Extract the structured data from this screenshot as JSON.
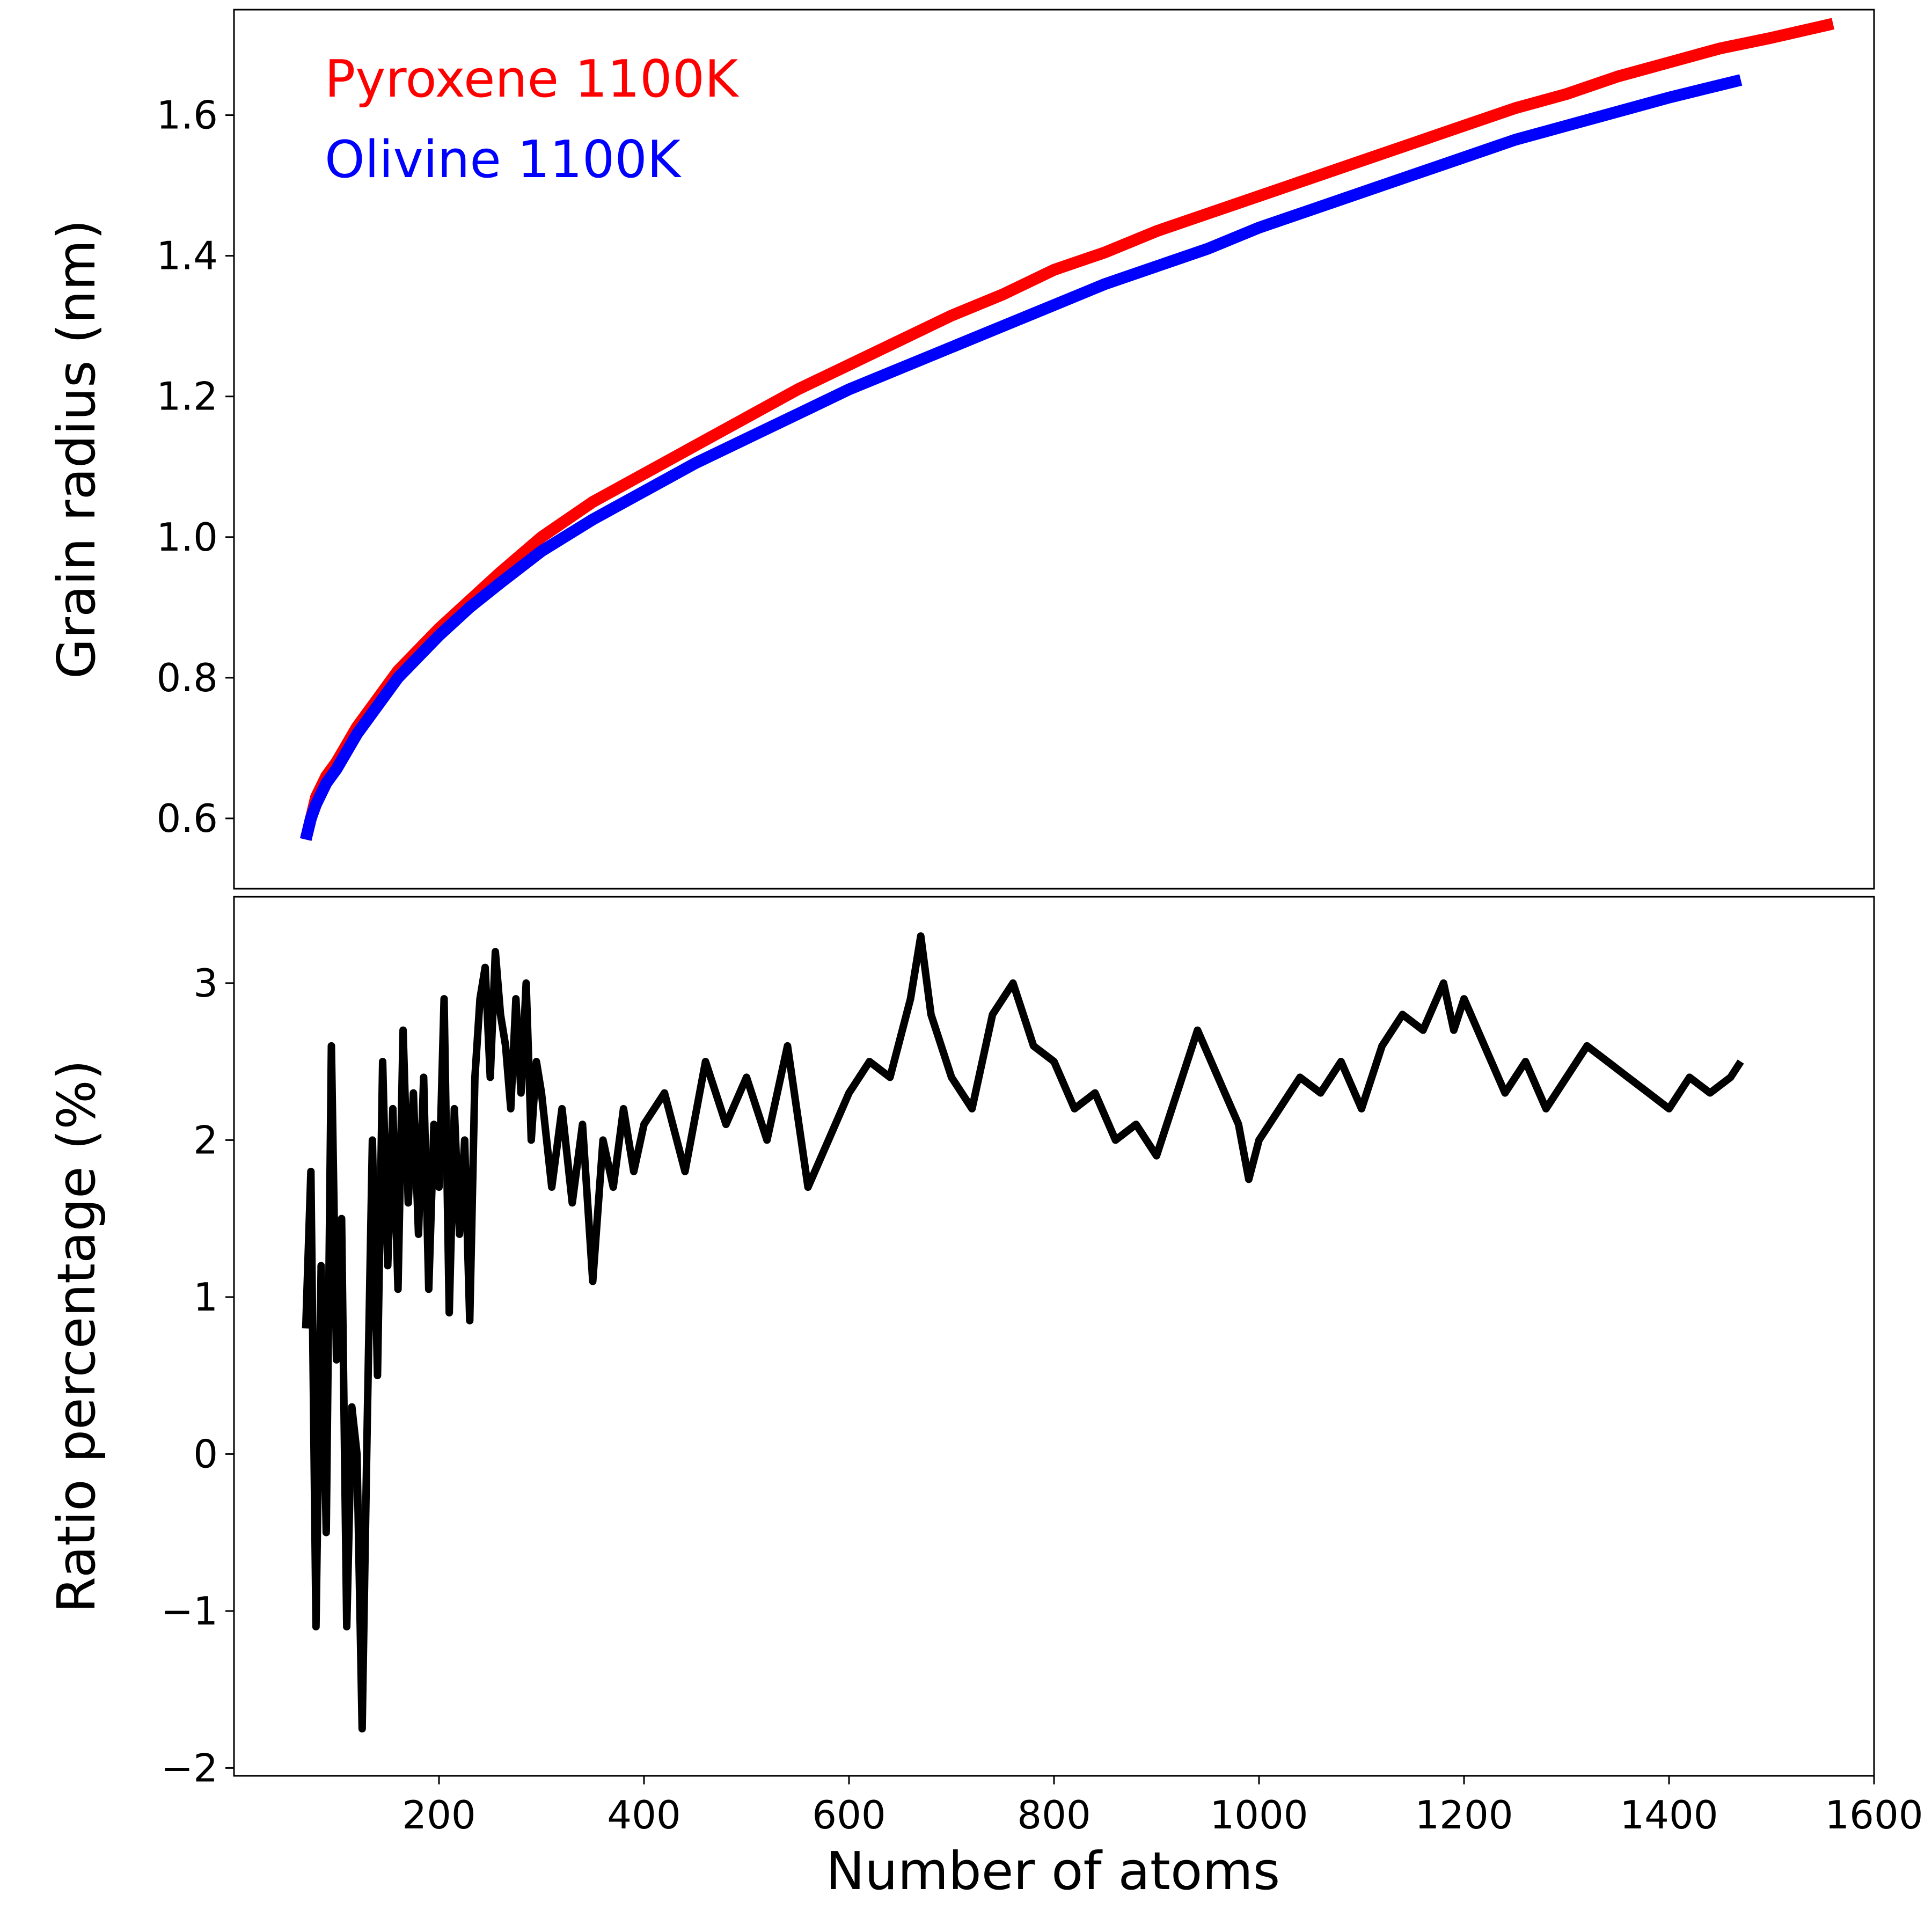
{
  "chart_data": [
    {
      "type": "line",
      "panel": "top",
      "xlabel": "",
      "ylabel": "Grain radius (nm)",
      "xlim": [
        0,
        1600
      ],
      "ylim": [
        0.5,
        1.75
      ],
      "x_ticks": [],
      "y_ticks": [
        "0.6",
        "0.8",
        "1.0",
        "1.2",
        "1.4",
        "1.6"
      ],
      "grid": false,
      "legend": "top-left (text labels)",
      "series": [
        {
          "name": "Pyroxene 1100K",
          "color": "#ff0000",
          "x": [
            70,
            75,
            80,
            90,
            100,
            120,
            140,
            160,
            180,
            200,
            230,
            260,
            300,
            350,
            400,
            450,
            500,
            550,
            600,
            650,
            700,
            750,
            800,
            850,
            900,
            950,
            1000,
            1050,
            1100,
            1150,
            1200,
            1250,
            1300,
            1350,
            1400,
            1450,
            1500,
            1560
          ],
          "y": [
            0.57,
            0.6,
            0.63,
            0.66,
            0.68,
            0.73,
            0.77,
            0.81,
            0.84,
            0.87,
            0.91,
            0.95,
            1.0,
            1.05,
            1.09,
            1.13,
            1.17,
            1.21,
            1.245,
            1.28,
            1.315,
            1.345,
            1.38,
            1.405,
            1.435,
            1.46,
            1.485,
            1.51,
            1.535,
            1.56,
            1.585,
            1.61,
            1.63,
            1.655,
            1.675,
            1.695,
            1.71,
            1.73
          ]
        },
        {
          "name": "Olivine 1100K",
          "color": "#0000ff",
          "x": [
            70,
            75,
            80,
            90,
            100,
            120,
            140,
            160,
            180,
            200,
            230,
            260,
            300,
            350,
            400,
            450,
            500,
            550,
            600,
            650,
            700,
            750,
            800,
            850,
            900,
            950,
            1000,
            1050,
            1100,
            1150,
            1200,
            1250,
            1300,
            1350,
            1400,
            1470
          ],
          "y": [
            0.57,
            0.6,
            0.62,
            0.65,
            0.67,
            0.72,
            0.76,
            0.8,
            0.83,
            0.86,
            0.9,
            0.935,
            0.98,
            1.025,
            1.065,
            1.105,
            1.14,
            1.175,
            1.21,
            1.24,
            1.27,
            1.3,
            1.33,
            1.36,
            1.385,
            1.41,
            1.44,
            1.465,
            1.49,
            1.515,
            1.54,
            1.565,
            1.585,
            1.605,
            1.625,
            1.65
          ]
        }
      ]
    },
    {
      "type": "line",
      "panel": "bottom",
      "xlabel": "Number of atoms",
      "ylabel": "Ratio percentage (%)",
      "xlim": [
        0,
        1600
      ],
      "ylim": [
        -2.05,
        3.55
      ],
      "x_ticks": [
        "200",
        "400",
        "600",
        "800",
        "1000",
        "1200",
        "1400",
        "1600"
      ],
      "y_ticks": [
        "−2",
        "−1",
        "0",
        "1",
        "2",
        "3"
      ],
      "grid": false,
      "series": [
        {
          "name": "",
          "color": "#000000",
          "x": [
            70,
            75,
            80,
            85,
            90,
            95,
            100,
            105,
            110,
            115,
            120,
            125,
            130,
            135,
            140,
            145,
            150,
            155,
            160,
            165,
            170,
            175,
            180,
            185,
            190,
            195,
            200,
            205,
            210,
            215,
            220,
            225,
            230,
            235,
            240,
            245,
            250,
            255,
            260,
            265,
            270,
            275,
            280,
            285,
            290,
            295,
            300,
            310,
            320,
            330,
            340,
            350,
            360,
            370,
            380,
            390,
            400,
            420,
            440,
            460,
            480,
            500,
            520,
            540,
            560,
            580,
            600,
            620,
            640,
            660,
            670,
            680,
            690,
            700,
            720,
            740,
            760,
            780,
            800,
            820,
            840,
            860,
            880,
            900,
            920,
            940,
            960,
            980,
            990,
            1000,
            1020,
            1040,
            1060,
            1080,
            1100,
            1120,
            1140,
            1160,
            1180,
            1190,
            1200,
            1220,
            1240,
            1260,
            1280,
            1300,
            1320,
            1340,
            1360,
            1380,
            1400,
            1420,
            1440,
            1460,
            1470
          ],
          "y": [
            0.8,
            1.8,
            -1.1,
            1.2,
            -0.5,
            2.6,
            0.6,
            1.5,
            -1.1,
            0.3,
            0.0,
            -1.75,
            0.2,
            2.0,
            0.5,
            2.5,
            1.2,
            2.2,
            1.05,
            2.7,
            1.6,
            2.3,
            1.4,
            2.4,
            1.05,
            2.1,
            1.7,
            2.9,
            0.9,
            2.2,
            1.4,
            2.0,
            0.85,
            2.4,
            2.9,
            3.1,
            2.4,
            3.2,
            2.8,
            2.6,
            2.2,
            2.9,
            2.3,
            3.0,
            2.0,
            2.5,
            2.3,
            1.7,
            2.2,
            1.6,
            2.1,
            1.1,
            2.0,
            1.7,
            2.2,
            1.8,
            2.1,
            2.3,
            1.8,
            2.5,
            2.1,
            2.4,
            2.0,
            2.6,
            1.7,
            2.0,
            2.3,
            2.5,
            2.4,
            2.9,
            3.3,
            2.8,
            2.6,
            2.4,
            2.2,
            2.8,
            3.0,
            2.6,
            2.5,
            2.2,
            2.3,
            2.0,
            2.1,
            1.9,
            2.3,
            2.7,
            2.4,
            2.1,
            1.75,
            2.0,
            2.2,
            2.4,
            2.3,
            2.5,
            2.2,
            2.6,
            2.8,
            2.7,
            3.0,
            2.7,
            2.9,
            2.6,
            2.3,
            2.5,
            2.2,
            2.4,
            2.6,
            2.5,
            2.4,
            2.3,
            2.2,
            2.4,
            2.3,
            2.4,
            2.5
          ]
        }
      ]
    }
  ]
}
